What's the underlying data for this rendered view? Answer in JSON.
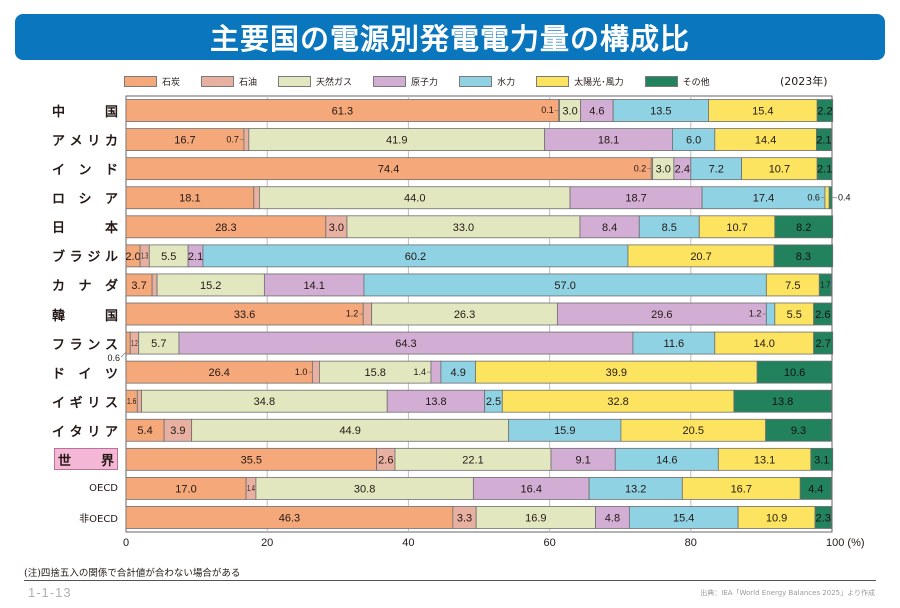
{
  "header": {
    "title": "主要国の電源別発電電力量の構成比"
  },
  "year_label": "(2023年)",
  "note": "(注)四捨五入の関係で合計値が合わない場合がある",
  "figure_number": "1-1-13",
  "source": "出典：IEA「World Energy Balances 2025」より作成",
  "colors": {
    "coal": "#f5a97a",
    "oil": "#e8b0a0",
    "gas": "#e3e7c0",
    "nuclear": "#d2aed4",
    "hydro": "#8fd2e3",
    "solar_wind": "#fde460",
    "other": "#23825e",
    "title_bar": "#0a76bd",
    "world_highlight": "#f4b8d6"
  },
  "chart_data": {
    "type": "bar",
    "orientation": "horizontal",
    "stacked": true,
    "title": "主要国の電源別発電電力量の構成比",
    "xlabel": "(%)",
    "ylabel": "",
    "xlim": [
      0,
      100
    ],
    "x_ticks": [
      "0",
      "20",
      "40",
      "60",
      "80",
      "100 (%)"
    ],
    "grid": true,
    "legend_position": "top",
    "legend": [
      "石炭",
      "石油",
      "天然ガス",
      "原子力",
      "水力",
      "太陽光･風力",
      "その他"
    ],
    "series_keys": [
      "coal",
      "oil",
      "gas",
      "nuclear",
      "hydro",
      "solar_wind",
      "other"
    ],
    "categories": [
      "中　国",
      "アメリカ",
      "インド",
      "ロシア",
      "日　本",
      "ブラジル",
      "カナダ",
      "韓　国",
      "フランス",
      "ドイツ",
      "イギリス",
      "イタリア",
      "世　界",
      "OECD",
      "非OECD"
    ],
    "category_styles": [
      "wide",
      "wide",
      "wide",
      "wide",
      "wide",
      "wide",
      "wide",
      "wide",
      "wide",
      "wide",
      "wide",
      "wide",
      "world",
      "small",
      "small"
    ],
    "rows": [
      {
        "values": [
          61.3,
          0.1,
          3.0,
          4.6,
          13.5,
          15.4,
          2.2
        ],
        "labels": [
          "61.3",
          "0.1",
          "3.0",
          "4.6",
          "13.5",
          "15.4",
          "2.2"
        ],
        "label_pos": [
          "in",
          "left",
          "in",
          "in",
          "in",
          "in",
          "in"
        ]
      },
      {
        "values": [
          16.7,
          0.7,
          41.9,
          18.1,
          6.0,
          14.4,
          2.1
        ],
        "labels": [
          "16.7",
          "0.7",
          "41.9",
          "18.1",
          "6.0",
          "14.4",
          "2.1"
        ],
        "label_pos": [
          "in",
          "left",
          "in",
          "in",
          "in",
          "in",
          "in"
        ]
      },
      {
        "values": [
          74.4,
          0.2,
          3.0,
          2.4,
          7.2,
          10.7,
          2.1
        ],
        "labels": [
          "74.4",
          "0.2",
          "3.0",
          "2.4",
          "7.2",
          "10.7",
          "2.1"
        ],
        "label_pos": [
          "in",
          "left",
          "in",
          "in",
          "in",
          "in",
          "in"
        ]
      },
      {
        "values": [
          18.1,
          0.8,
          44.0,
          18.7,
          17.4,
          0.6,
          0.4
        ],
        "labels": [
          "18.1",
          "0.8",
          "44.0",
          "18.7",
          "17.4",
          "0.6",
          "0.4"
        ],
        "label_pos": [
          "in",
          "right",
          "in",
          "in",
          "in",
          "left",
          "outside"
        ]
      },
      {
        "values": [
          28.3,
          3.0,
          33.0,
          8.4,
          8.5,
          10.7,
          8.2
        ],
        "labels": [
          "28.3",
          "3.0",
          "33.0",
          "8.4",
          "8.5",
          "10.7",
          "8.2"
        ],
        "label_pos": [
          "in",
          "in",
          "in",
          "in",
          "in",
          "in",
          "in"
        ]
      },
      {
        "values": [
          2.0,
          1.3,
          5.5,
          2.1,
          60.2,
          20.7,
          8.3
        ],
        "labels": [
          "2.0",
          "1.3",
          "5.5",
          "2.1",
          "60.2",
          "20.7",
          "8.3"
        ],
        "label_pos": [
          "in",
          "in",
          "in",
          "in",
          "in",
          "in",
          "in"
        ]
      },
      {
        "values": [
          3.7,
          0.7,
          15.2,
          14.1,
          57.0,
          7.5,
          1.7
        ],
        "labels": [
          "3.7",
          "0.7",
          "15.2",
          "14.1",
          "57.0",
          "7.5",
          "1.7"
        ],
        "label_pos": [
          "in",
          "right",
          "in",
          "in",
          "in",
          "in",
          "in"
        ]
      },
      {
        "values": [
          33.6,
          1.2,
          26.3,
          29.6,
          1.2,
          5.5,
          2.6
        ],
        "labels": [
          "33.6",
          "1.2",
          "26.3",
          "29.6",
          "1.2",
          "5.5",
          "2.6"
        ],
        "label_pos": [
          "in",
          "left",
          "in",
          "in",
          "left",
          "in",
          "in"
        ]
      },
      {
        "values": [
          0.6,
          1.2,
          5.7,
          64.3,
          11.6,
          14.0,
          2.7
        ],
        "labels": [
          "0.6",
          "1.2",
          "5.7",
          "64.3",
          "11.6",
          "14.0",
          "2.7"
        ],
        "label_pos": [
          "below",
          "in",
          "in",
          "in",
          "in",
          "in",
          "in"
        ]
      },
      {
        "values": [
          26.4,
          1.0,
          15.8,
          1.4,
          4.9,
          39.9,
          10.6
        ],
        "labels": [
          "26.4",
          "1.0",
          "15.8",
          "1.4",
          "4.9",
          "39.9",
          "10.6"
        ],
        "label_pos": [
          "in",
          "left",
          "in",
          "left",
          "in",
          "in",
          "in"
        ]
      },
      {
        "values": [
          1.6,
          0.6,
          34.8,
          13.8,
          2.5,
          32.8,
          13.8
        ],
        "labels": [
          "1.6",
          "0.6",
          "34.8",
          "13.8",
          "2.5",
          "32.8",
          "13.8"
        ],
        "label_pos": [
          "in",
          "right",
          "in",
          "in",
          "in",
          "in",
          "in"
        ]
      },
      {
        "values": [
          5.4,
          3.9,
          44.9,
          0,
          15.9,
          20.5,
          9.3
        ],
        "labels": [
          "5.4",
          "3.9",
          "44.9",
          "",
          "15.9",
          "20.5",
          "9.3"
        ],
        "label_pos": [
          "in",
          "in",
          "in",
          "none",
          "in",
          "in",
          "in"
        ]
      },
      {
        "values": [
          35.5,
          2.6,
          22.1,
          9.1,
          14.6,
          13.1,
          3.1
        ],
        "labels": [
          "35.5",
          "2.6",
          "22.1",
          "9.1",
          "14.6",
          "13.1",
          "3.1"
        ],
        "label_pos": [
          "in",
          "in",
          "in",
          "in",
          "in",
          "in",
          "in"
        ]
      },
      {
        "values": [
          17.0,
          1.4,
          30.8,
          16.4,
          13.2,
          16.7,
          4.4
        ],
        "labels": [
          "17.0",
          "1.4",
          "30.8",
          "16.4",
          "13.2",
          "16.7",
          "4.4"
        ],
        "label_pos": [
          "in",
          "in",
          "in",
          "in",
          "in",
          "in",
          "in"
        ]
      },
      {
        "values": [
          46.3,
          3.3,
          16.9,
          4.8,
          15.4,
          10.9,
          2.3
        ],
        "labels": [
          "46.3",
          "3.3",
          "16.9",
          "4.8",
          "15.4",
          "10.9",
          "2.3"
        ],
        "label_pos": [
          "in",
          "in",
          "in",
          "in",
          "in",
          "in",
          "in"
        ]
      }
    ]
  }
}
